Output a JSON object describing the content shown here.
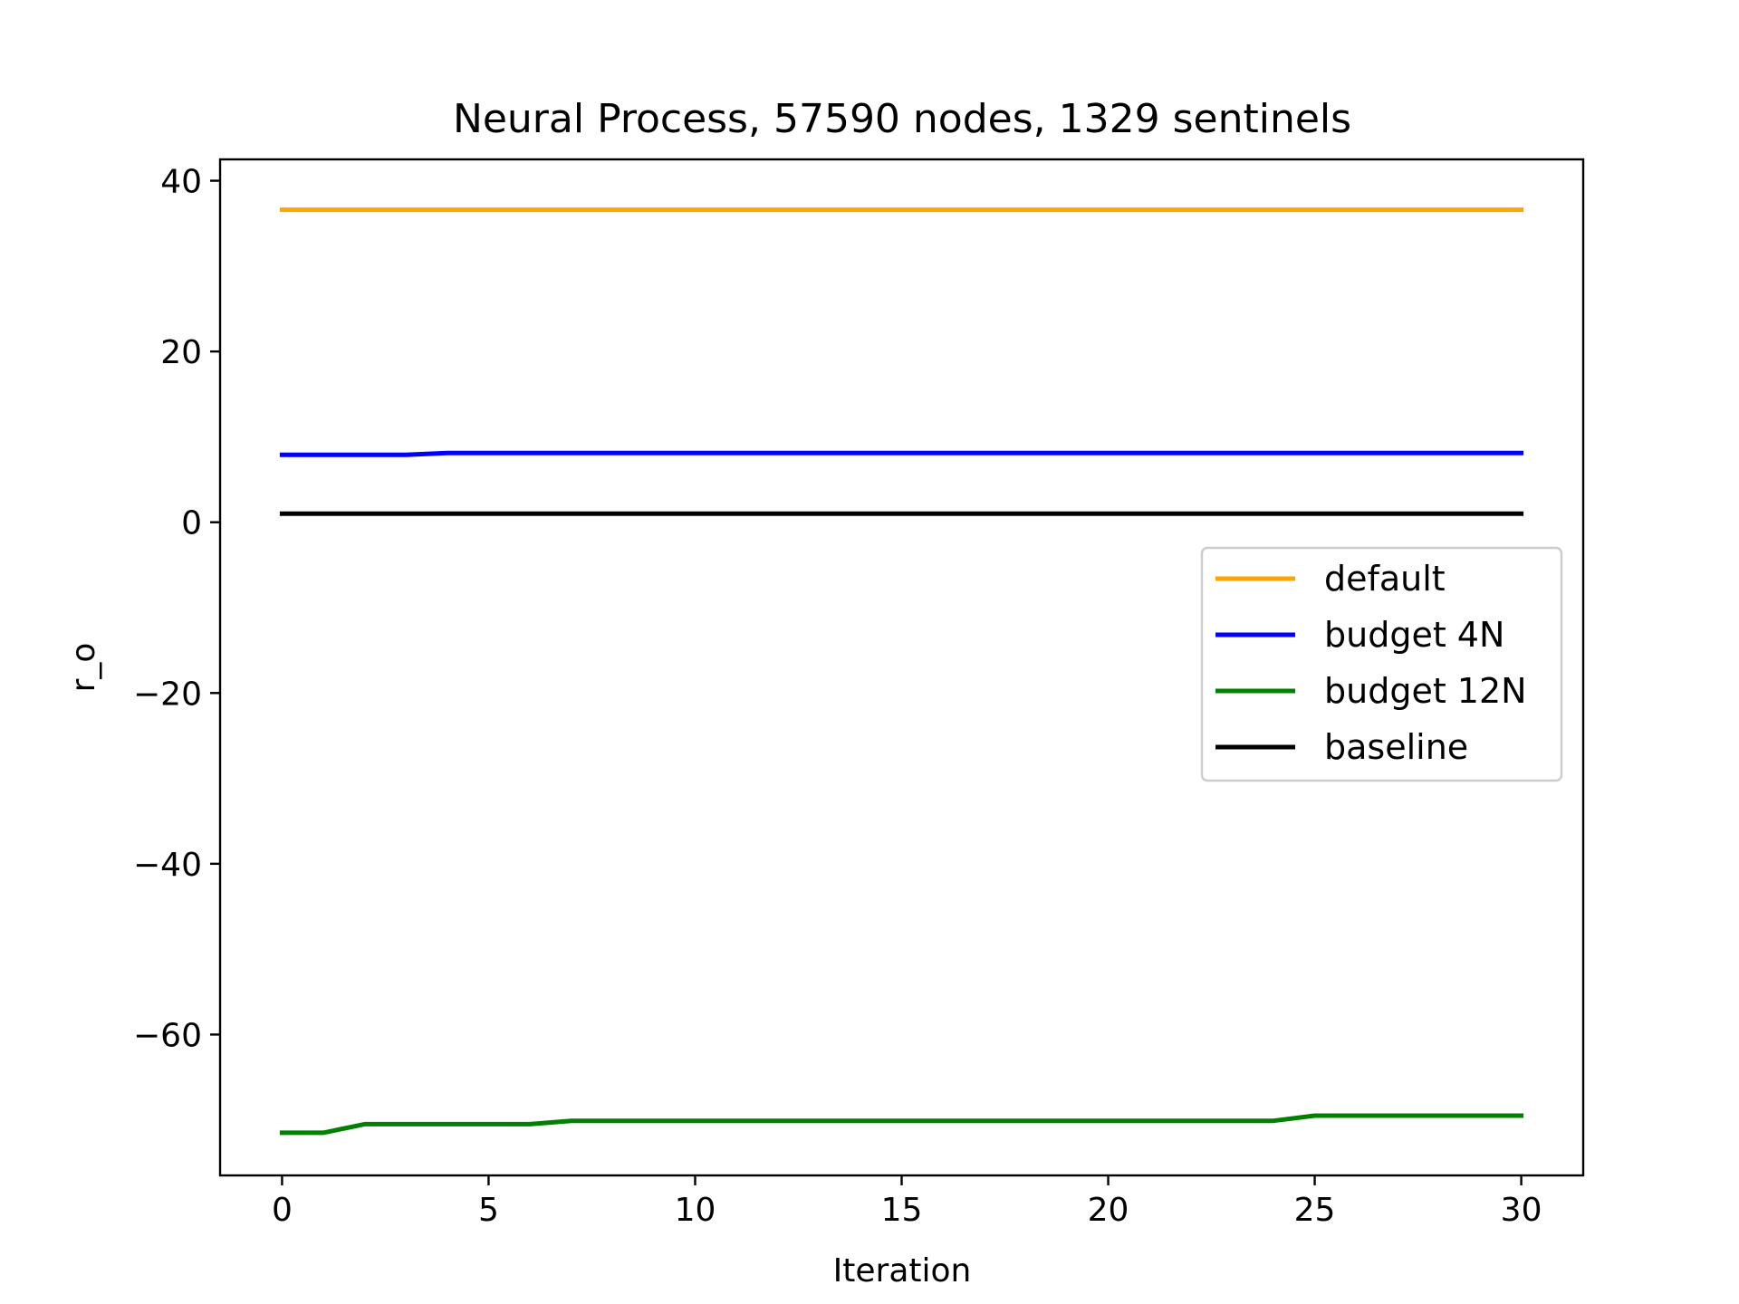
{
  "chart_data": {
    "type": "line",
    "title": "Neural Process, 57590 nodes, 1329 sentinels",
    "xlabel": "Iteration",
    "ylabel": "r_o",
    "xlim": [
      -1.5,
      31.5
    ],
    "ylim": [
      -76.5,
      42.5
    ],
    "xticks": [
      0,
      5,
      10,
      15,
      20,
      25,
      30
    ],
    "xtick_labels": [
      "0",
      "5",
      "10",
      "15",
      "20",
      "25",
      "30"
    ],
    "yticks": [
      40,
      20,
      0,
      -20,
      -40,
      -60
    ],
    "ytick_labels": [
      "40",
      "20",
      "0",
      "−20",
      "−40",
      "−60"
    ],
    "grid": false,
    "legend_position": "center-right",
    "x": [
      0,
      1,
      2,
      3,
      4,
      5,
      6,
      7,
      8,
      9,
      10,
      11,
      12,
      13,
      14,
      15,
      16,
      17,
      18,
      19,
      20,
      21,
      22,
      23,
      24,
      25,
      26,
      27,
      28,
      29,
      30
    ],
    "series": [
      {
        "name": "default",
        "color": "#ffa500",
        "values": [
          36.6,
          36.6,
          36.6,
          36.6,
          36.6,
          36.6,
          36.6,
          36.6,
          36.6,
          36.6,
          36.6,
          36.6,
          36.6,
          36.6,
          36.6,
          36.6,
          36.6,
          36.6,
          36.6,
          36.6,
          36.6,
          36.6,
          36.6,
          36.6,
          36.6,
          36.6,
          36.6,
          36.6,
          36.6,
          36.6,
          36.6
        ]
      },
      {
        "name": "budget 4N",
        "color": "#0000ff",
        "values": [
          7.9,
          7.9,
          7.9,
          7.9,
          8.1,
          8.1,
          8.1,
          8.1,
          8.1,
          8.1,
          8.1,
          8.1,
          8.1,
          8.1,
          8.1,
          8.1,
          8.1,
          8.1,
          8.1,
          8.1,
          8.1,
          8.1,
          8.1,
          8.1,
          8.1,
          8.1,
          8.1,
          8.1,
          8.1,
          8.1,
          8.1
        ]
      },
      {
        "name": "budget 12N",
        "color": "#008000",
        "values": [
          -71.5,
          -71.5,
          -70.5,
          -70.5,
          -70.5,
          -70.5,
          -70.5,
          -70.1,
          -70.1,
          -70.1,
          -70.1,
          -70.1,
          -70.1,
          -70.1,
          -70.1,
          -70.1,
          -70.1,
          -70.1,
          -70.1,
          -70.1,
          -70.1,
          -70.1,
          -70.1,
          -70.1,
          -70.1,
          -69.5,
          -69.5,
          -69.5,
          -69.5,
          -69.5,
          -69.5
        ]
      },
      {
        "name": "baseline",
        "color": "#000000",
        "values": [
          1.0,
          1.0,
          1.0,
          1.0,
          1.0,
          1.0,
          1.0,
          1.0,
          1.0,
          1.0,
          1.0,
          1.0,
          1.0,
          1.0,
          1.0,
          1.0,
          1.0,
          1.0,
          1.0,
          1.0,
          1.0,
          1.0,
          1.0,
          1.0,
          1.0,
          1.0,
          1.0,
          1.0,
          1.0,
          1.0,
          1.0
        ]
      }
    ]
  }
}
